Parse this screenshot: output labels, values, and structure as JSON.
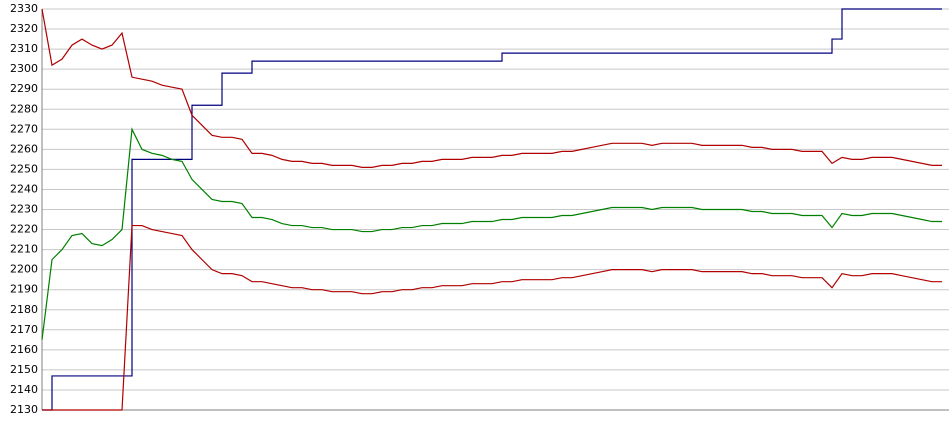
{
  "chart_data": {
    "type": "line",
    "ylim": [
      2130,
      2330
    ],
    "yticks": [
      2130,
      2140,
      2150,
      2160,
      2170,
      2180,
      2190,
      2200,
      2210,
      2220,
      2230,
      2240,
      2250,
      2260,
      2270,
      2280,
      2290,
      2300,
      2310,
      2320,
      2330
    ],
    "grid": true,
    "series": [
      {
        "color": "#00007f",
        "step": true,
        "values": [
          2130,
          2147,
          2147,
          2147,
          2147,
          2147,
          2147,
          2147,
          2147,
          2255,
          2255,
          2255,
          2255,
          2255,
          2255,
          2282,
          2282,
          2282,
          2298,
          2298,
          2298,
          2304,
          2304,
          2304,
          2304,
          2304,
          2304,
          2304,
          2304,
          2304,
          2304,
          2304,
          2304,
          2304,
          2304,
          2304,
          2304,
          2304,
          2304,
          2304,
          2304,
          2304,
          2304,
          2304,
          2304,
          2304,
          2308,
          2308,
          2308,
          2308,
          2308,
          2308,
          2308,
          2308,
          2308,
          2308,
          2308,
          2308,
          2308,
          2308,
          2308,
          2308,
          2308,
          2308,
          2308,
          2308,
          2308,
          2308,
          2308,
          2308,
          2308,
          2308,
          2308,
          2308,
          2308,
          2308,
          2308,
          2308,
          2308,
          2315,
          2330,
          2330,
          2330,
          2330,
          2330,
          2330,
          2330,
          2330,
          2330,
          2330,
          2330
        ]
      },
      {
        "color": "#b00000",
        "values": [
          2330,
          2302,
          2305,
          2312,
          2315,
          2312,
          2310,
          2312,
          2318,
          2296,
          2295,
          2294,
          2292,
          2291,
          2290,
          2277,
          2272,
          2267,
          2266,
          2266,
          2265,
          2258,
          2258,
          2257,
          2255,
          2254,
          2254,
          2253,
          2253,
          2252,
          2252,
          2252,
          2251,
          2251,
          2252,
          2252,
          2253,
          2253,
          2254,
          2254,
          2255,
          2255,
          2255,
          2256,
          2256,
          2256,
          2257,
          2257,
          2258,
          2258,
          2258,
          2258,
          2259,
          2259,
          2260,
          2261,
          2262,
          2263,
          2263,
          2263,
          2263,
          2262,
          2263,
          2263,
          2263,
          2263,
          2262,
          2262,
          2262,
          2262,
          2262,
          2261,
          2261,
          2260,
          2260,
          2260,
          2259,
          2259,
          2259,
          2253,
          2256,
          2255,
          2255,
          2256,
          2256,
          2256,
          2255,
          2254,
          2253,
          2252,
          2252
        ]
      },
      {
        "color": "#008000",
        "values": [
          2165,
          2205,
          2210,
          2217,
          2218,
          2213,
          2212,
          2215,
          2220,
          2270,
          2260,
          2258,
          2257,
          2255,
          2254,
          2245,
          2240,
          2235,
          2234,
          2234,
          2233,
          2226,
          2226,
          2225,
          2223,
          2222,
          2222,
          2221,
          2221,
          2220,
          2220,
          2220,
          2219,
          2219,
          2220,
          2220,
          2221,
          2221,
          2222,
          2222,
          2223,
          2223,
          2223,
          2224,
          2224,
          2224,
          2225,
          2225,
          2226,
          2226,
          2226,
          2226,
          2227,
          2227,
          2228,
          2229,
          2230,
          2231,
          2231,
          2231,
          2231,
          2230,
          2231,
          2231,
          2231,
          2231,
          2230,
          2230,
          2230,
          2230,
          2230,
          2229,
          2229,
          2228,
          2228,
          2228,
          2227,
          2227,
          2227,
          2221,
          2228,
          2227,
          2227,
          2228,
          2228,
          2228,
          2227,
          2226,
          2225,
          2224,
          2224
        ]
      },
      {
        "color": "#b00000",
        "values": [
          2130,
          2130,
          2130,
          2130,
          2130,
          2130,
          2130,
          2130,
          2130,
          2222,
          2222,
          2220,
          2219,
          2218,
          2217,
          2210,
          2205,
          2200,
          2198,
          2198,
          2197,
          2194,
          2194,
          2193,
          2192,
          2191,
          2191,
          2190,
          2190,
          2189,
          2189,
          2189,
          2188,
          2188,
          2189,
          2189,
          2190,
          2190,
          2191,
          2191,
          2192,
          2192,
          2192,
          2193,
          2193,
          2193,
          2194,
          2194,
          2195,
          2195,
          2195,
          2195,
          2196,
          2196,
          2197,
          2198,
          2199,
          2200,
          2200,
          2200,
          2200,
          2199,
          2200,
          2200,
          2200,
          2200,
          2199,
          2199,
          2199,
          2199,
          2199,
          2198,
          2198,
          2197,
          2197,
          2197,
          2196,
          2196,
          2196,
          2191,
          2198,
          2197,
          2197,
          2198,
          2198,
          2198,
          2197,
          2196,
          2195,
          2194,
          2194
        ]
      }
    ]
  }
}
